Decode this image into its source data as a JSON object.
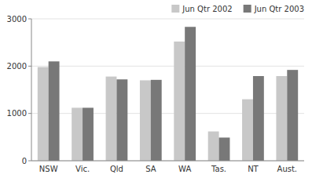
{
  "chart_data": {
    "type": "bar",
    "categories": [
      "NSW",
      "Vic.",
      "Qld",
      "SA",
      "WA",
      "Tas.",
      "NT",
      "Aust."
    ],
    "series": [
      {
        "name": "Jun Qtr 2002",
        "color": "#c8c8c8",
        "values": [
          1980,
          1120,
          1780,
          1700,
          2520,
          620,
          1300,
          1790
        ]
      },
      {
        "name": "Jun Qtr 2003",
        "color": "#787878",
        "values": [
          2100,
          1120,
          1720,
          1710,
          2830,
          490,
          1790,
          1920
        ]
      }
    ],
    "ylim": [
      0,
      3000
    ],
    "yticks": [
      0,
      1000,
      2000,
      3000
    ],
    "grid": true,
    "legend": "top-right"
  }
}
